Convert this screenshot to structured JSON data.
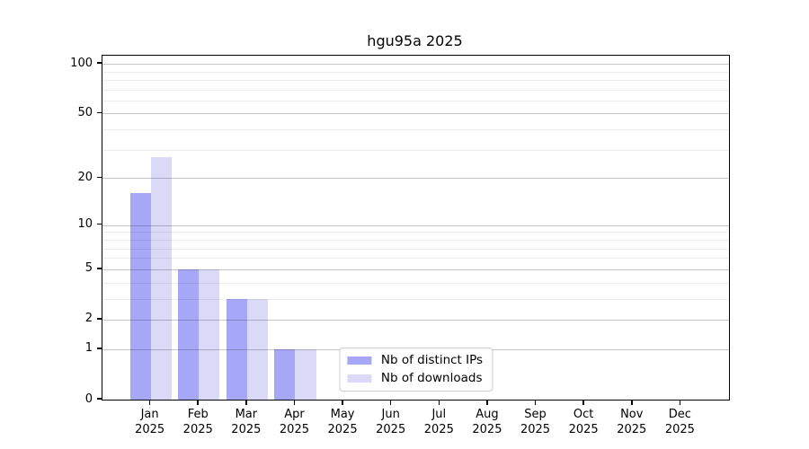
{
  "chart_data": {
    "type": "bar",
    "title": "hgu95a 2025",
    "categories": [
      "Jan",
      "Feb",
      "Mar",
      "Apr",
      "May",
      "Jun",
      "Jul",
      "Aug",
      "Sep",
      "Oct",
      "Nov",
      "Dec"
    ],
    "x_year": "2025",
    "series": [
      {
        "name": "Nb of distinct IPs",
        "color": "#a7a7f7",
        "values": [
          16,
          5,
          3,
          1,
          0,
          0,
          0,
          0,
          0,
          0,
          0,
          0
        ]
      },
      {
        "name": "Nb of downloads",
        "color": "#dadaf8",
        "values": [
          27,
          5,
          3,
          1,
          0,
          0,
          0,
          0,
          0,
          0,
          0,
          0
        ]
      }
    ],
    "yscale": "log1p",
    "ylim": [
      0,
      112
    ],
    "yticks": [
      0,
      1,
      2,
      5,
      10,
      20,
      50,
      100
    ],
    "yticks_minor": [
      3,
      4,
      6,
      7,
      8,
      9,
      30,
      40,
      60,
      70,
      80,
      90
    ],
    "grid": "horizontal-on",
    "legend_position": "lower center",
    "colors": {
      "grid_major": "rgba(0,0,0,0.22)",
      "grid_minor": "rgba(0,0,0,0.07)",
      "axis": "#000000",
      "background": "#ffffff"
    }
  }
}
